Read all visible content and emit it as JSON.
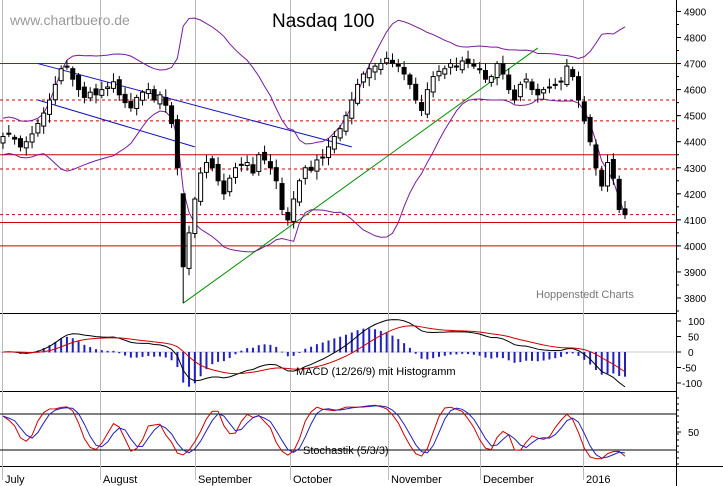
{
  "chart_data": [
    {
      "type": "candlestick",
      "title": "Nasdaq 100",
      "watermark": "www.chartbuero.de",
      "credit": "Hoppenstedt Charts",
      "x_labels": [
        "July",
        "August",
        "September",
        "October",
        "November",
        "December",
        "2016"
      ],
      "y_ticks": [
        3800,
        3900,
        4000,
        4100,
        4200,
        4300,
        4400,
        4500,
        4600,
        4700,
        4800,
        4900
      ],
      "ylim": [
        3740,
        4930
      ],
      "horizontal_lines": [
        {
          "value": 4700,
          "style": "solid"
        },
        {
          "value": 4560,
          "style": "dashed"
        },
        {
          "value": 4480,
          "style": "dashed"
        },
        {
          "value": 4350,
          "style": "solid"
        },
        {
          "value": 4295,
          "style": "dashed"
        },
        {
          "value": 4120,
          "style": "dashed"
        },
        {
          "value": 4090,
          "style": "solid"
        },
        {
          "value": 4000,
          "style": "solid"
        }
      ],
      "closes": [
        4420,
        4430,
        4410,
        4380,
        4400,
        4430,
        4470,
        4510,
        4560,
        4620,
        4680,
        4690,
        4640,
        4600,
        4570,
        4590,
        4580,
        4600,
        4610,
        4630,
        4580,
        4550,
        4530,
        4570,
        4590,
        4600,
        4560,
        4580,
        4540,
        4470,
        4300,
        3920,
        4050,
        4180,
        4280,
        4320,
        4300,
        4250,
        4200,
        4260,
        4300,
        4310,
        4320,
        4280,
        4350,
        4330,
        4300,
        4250,
        4140,
        4100,
        4180,
        4250,
        4300,
        4290,
        4330,
        4340,
        4380,
        4420,
        4450,
        4500,
        4560,
        4620,
        4660,
        4680,
        4690,
        4700,
        4720,
        4700,
        4690,
        4660,
        4620,
        4560,
        4520,
        4600,
        4650,
        4670,
        4680,
        4700,
        4690,
        4710,
        4700,
        4690,
        4680,
        4640,
        4650,
        4700,
        4660,
        4600,
        4560,
        4620,
        4640,
        4600,
        4580,
        4600,
        4610,
        4620,
        4630,
        4690,
        4650,
        4560,
        4480,
        4400,
        4300,
        4230,
        4320,
        4260,
        4140,
        4120
      ]
    },
    {
      "type": "line",
      "name": "MACD (12/26/9) mit Histogramm",
      "y_ticks": [
        100,
        50,
        0,
        -50,
        -100
      ],
      "ylim": [
        -130,
        130
      ]
    },
    {
      "type": "line",
      "name": "Stochastik (5/3/3)",
      "y_ticks": [
        50
      ],
      "ylim": [
        0,
        100
      ]
    }
  ],
  "colors": {
    "price_line": "#d00000",
    "bollinger": "#7a1a9a",
    "downtrend": "#1010c0",
    "uptrend": "#009000",
    "macd": "#000000",
    "signal": "#d00000",
    "histogram": "#2020c0",
    "stoch_k": "#d00000",
    "stoch_d": "#2020c0"
  }
}
